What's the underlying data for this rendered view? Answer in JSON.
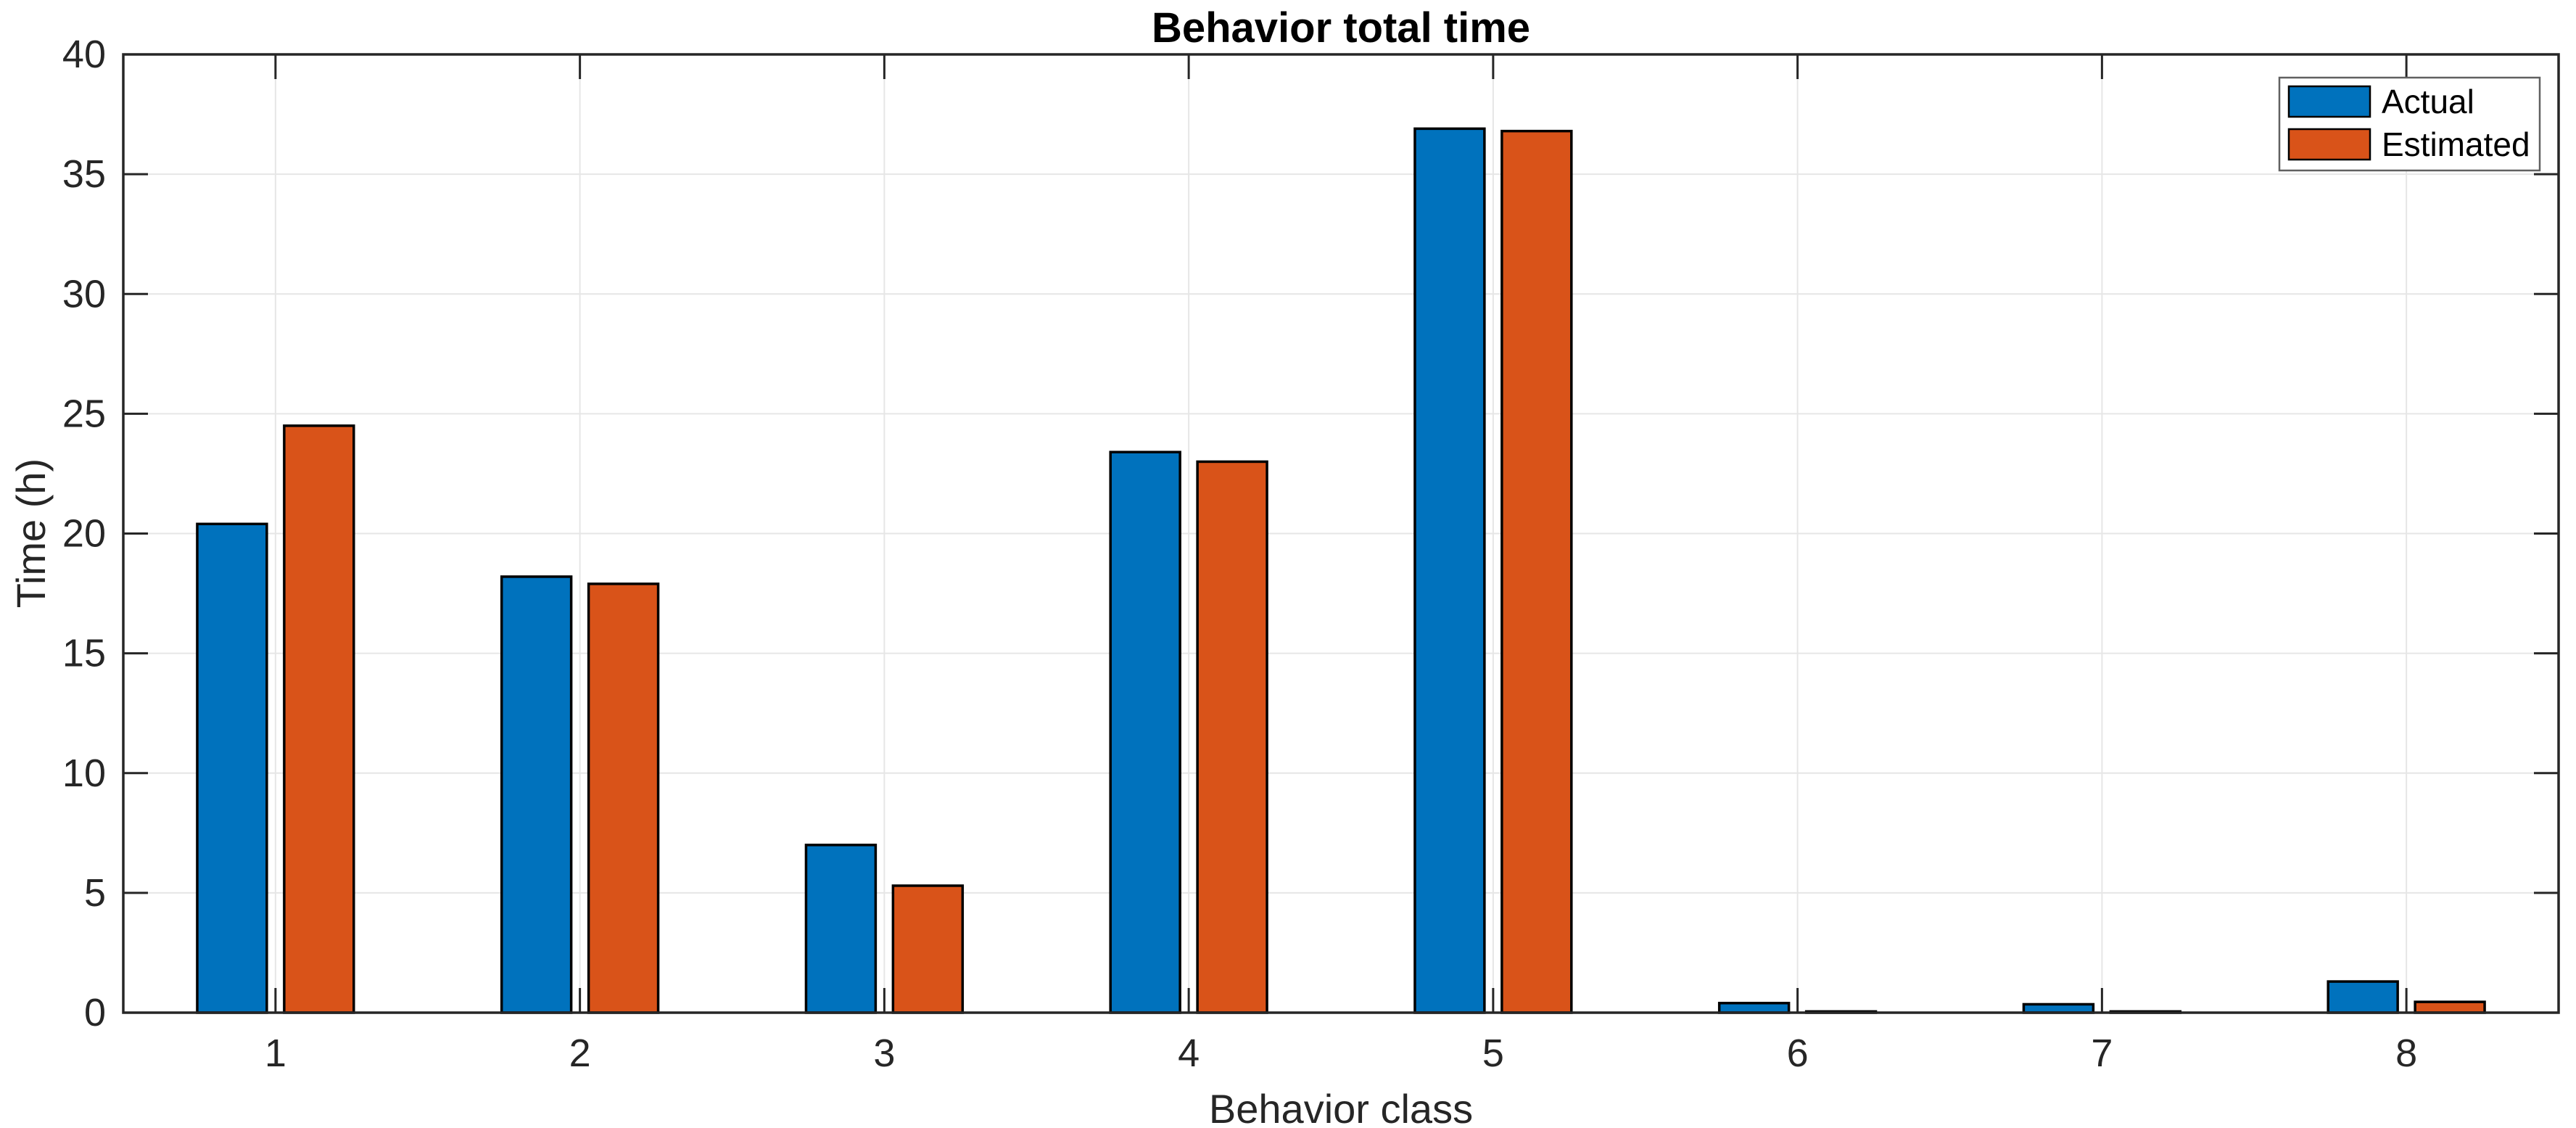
{
  "chart_data": {
    "type": "bar",
    "title": "Behavior total time",
    "xlabel": "Behavior class",
    "ylabel": "Time (h)",
    "categories": [
      "1",
      "2",
      "3",
      "4",
      "5",
      "6",
      "7",
      "8"
    ],
    "series": [
      {
        "name": "Actual",
        "color": "#0072BD",
        "values": [
          20.4,
          18.2,
          7.0,
          23.4,
          36.9,
          0.4,
          0.35,
          1.3
        ]
      },
      {
        "name": "Estimated",
        "color": "#D95319",
        "values": [
          24.5,
          17.9,
          5.3,
          23.0,
          36.8,
          0.05,
          0.05,
          0.45
        ]
      }
    ],
    "ylim": [
      0,
      40
    ],
    "yticks": [
      0,
      5,
      10,
      15,
      20,
      25,
      30,
      35,
      40
    ],
    "grid": true,
    "legend_position": "top-right",
    "colors": {
      "bar_edge": "#000000",
      "axis": "#262626",
      "grid": "#e6e6e6",
      "background": "#ffffff",
      "legend_border": "#606060"
    }
  }
}
